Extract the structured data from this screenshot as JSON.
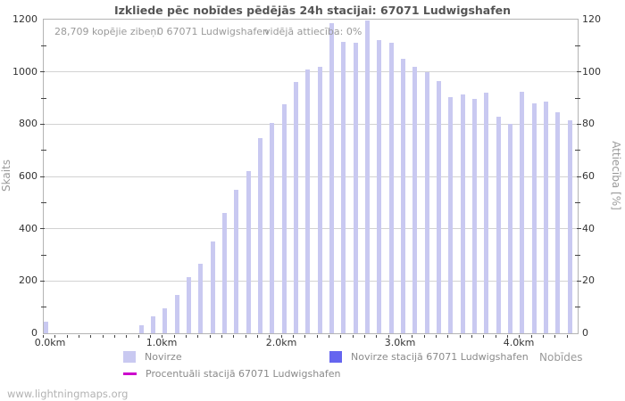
{
  "page": {
    "watermark": "www.lightningmaps.org"
  },
  "chart_data": {
    "type": "bar",
    "title": "Izkliede pēc nobīdes pēdējās 24h stacijai: 67071 Ludwigshafen",
    "annotation": {
      "total_strikes": "28,709 kopējie zibeņi",
      "station_strikes": "0 67071 Ludwigshafen",
      "avg_ratio": "vidējā attiecība: 0%"
    },
    "x_axis": {
      "title": "Nobīdes",
      "unit": "km",
      "range_km": [
        0,
        4.49
      ],
      "minor_tick_step_km": 0.1,
      "major_ticks": [
        {
          "km": 0,
          "label": "0.0km"
        },
        {
          "km": 1,
          "label": "1.0km"
        },
        {
          "km": 2,
          "label": "2.0km"
        },
        {
          "km": 3,
          "label": "3.0km"
        },
        {
          "km": 4,
          "label": "4.0km"
        }
      ]
    },
    "y_axis_left": {
      "title": "Skaits",
      "range": [
        0,
        1200
      ],
      "ticks": [
        0,
        200,
        400,
        600,
        800,
        1000,
        1200
      ]
    },
    "y_axis_right": {
      "title": "Attiecība [%]",
      "range": [
        0,
        120
      ],
      "ticks": [
        0,
        20,
        40,
        60,
        80,
        100,
        120
      ]
    },
    "grid": "horizontal",
    "legend_position": "bottom",
    "bin_width_km": 0.1,
    "x_km": [
      0.0,
      0.1,
      0.2,
      0.3,
      0.4,
      0.5,
      0.6,
      0.7,
      0.8,
      0.9,
      1.0,
      1.1,
      1.2,
      1.3,
      1.4,
      1.5,
      1.6,
      1.7,
      1.8,
      1.9,
      2.0,
      2.1,
      2.2,
      2.3,
      2.4,
      2.5,
      2.6,
      2.7,
      2.8,
      2.9,
      3.0,
      3.1,
      3.2,
      3.3,
      3.4,
      3.5,
      3.6,
      3.7,
      3.8,
      3.9,
      4.0,
      4.1,
      4.2,
      4.3,
      4.4
    ],
    "series": [
      {
        "name": "Novirze",
        "type": "bar",
        "color": "#c9c9f1",
        "values": [
          45,
          0,
          0,
          0,
          0,
          0,
          0,
          0,
          30,
          65,
          95,
          145,
          215,
          265,
          350,
          460,
          550,
          620,
          745,
          805,
          875,
          960,
          1010,
          1020,
          1185,
          1115,
          1110,
          1195,
          1120,
          1110,
          1050,
          1020,
          1000,
          965,
          905,
          915,
          895,
          920,
          830,
          800,
          925,
          880,
          885,
          845,
          815
        ]
      },
      {
        "name": "Novirze stacijā 67071 Ludwigshafen",
        "type": "bar",
        "color": "#6565ef",
        "values": [
          0,
          0,
          0,
          0,
          0,
          0,
          0,
          0,
          0,
          0,
          0,
          0,
          0,
          0,
          0,
          0,
          0,
          0,
          0,
          0,
          0,
          0,
          0,
          0,
          0,
          0,
          0,
          0,
          0,
          0,
          0,
          0,
          0,
          0,
          0,
          0,
          0,
          0,
          0,
          0,
          0,
          0,
          0,
          0,
          0
        ]
      },
      {
        "name": "Procentuāli stacijā 67071 Ludwigshafen",
        "type": "line",
        "color": "#cc00cc",
        "values": [
          0,
          0,
          0,
          0,
          0,
          0,
          0,
          0,
          0,
          0,
          0,
          0,
          0,
          0,
          0,
          0,
          0,
          0,
          0,
          0,
          0,
          0,
          0,
          0,
          0,
          0,
          0,
          0,
          0,
          0,
          0,
          0,
          0,
          0,
          0,
          0,
          0,
          0,
          0,
          0,
          0,
          0,
          0,
          0,
          0
        ]
      }
    ]
  }
}
